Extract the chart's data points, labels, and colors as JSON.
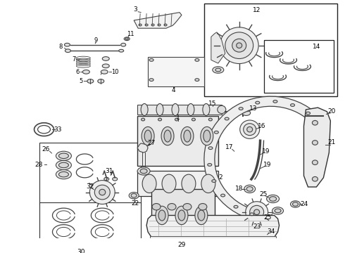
{
  "background_color": "#ffffff",
  "figsize": [
    4.9,
    3.6
  ],
  "dpi": 100,
  "line_color": "#444444",
  "label_color": "#000000"
}
